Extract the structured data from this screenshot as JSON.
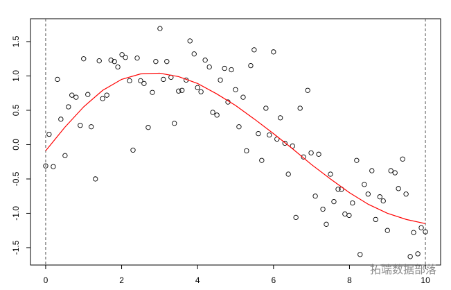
{
  "chart_data": {
    "type": "scatter",
    "x": [
      0,
      0.09,
      0.2,
      0.31,
      0.4,
      0.51,
      0.6,
      0.69,
      0.8,
      0.91,
      1.0,
      1.11,
      1.2,
      1.31,
      1.41,
      1.5,
      1.61,
      1.72,
      1.81,
      1.9,
      2.01,
      2.1,
      2.21,
      2.3,
      2.41,
      2.5,
      2.59,
      2.7,
      2.81,
      2.9,
      3.01,
      3.1,
      3.19,
      3.3,
      3.39,
      3.5,
      3.59,
      3.7,
      3.8,
      3.91,
      4.0,
      4.09,
      4.2,
      4.31,
      4.4,
      4.51,
      4.6,
      4.71,
      4.8,
      4.89,
      5.0,
      5.09,
      5.2,
      5.29,
      5.4,
      5.49,
      5.6,
      5.69,
      5.8,
      5.89,
      6.0,
      6.09,
      6.18,
      6.3,
      6.39,
      6.5,
      6.59,
      6.7,
      6.79,
      6.9,
      6.99,
      7.1,
      7.19,
      7.3,
      7.39,
      7.5,
      7.59,
      7.7,
      7.79,
      7.88,
      7.99,
      8.08,
      8.19,
      8.28,
      8.39,
      8.49,
      8.59,
      8.69,
      8.8,
      8.89,
      9.0,
      9.09,
      9.2,
      9.29,
      9.4,
      9.49,
      9.6,
      9.69,
      9.8,
      9.89,
      10.0
    ],
    "values": [
      -0.31,
      0.15,
      -0.32,
      0.95,
      0.37,
      -0.16,
      0.55,
      0.72,
      0.69,
      0.28,
      1.25,
      0.73,
      0.26,
      -0.5,
      1.22,
      0.67,
      0.72,
      1.23,
      1.21,
      1.13,
      1.31,
      1.27,
      0.93,
      -0.08,
      1.26,
      0.93,
      0.89,
      0.25,
      0.76,
      1.21,
      1.69,
      0.95,
      1.21,
      0.98,
      0.31,
      0.78,
      0.79,
      0.94,
      1.51,
      1.32,
      0.83,
      0.77,
      1.23,
      1.13,
      0.47,
      0.43,
      0.94,
      1.11,
      0.62,
      1.09,
      0.8,
      0.26,
      0.69,
      -0.09,
      1.15,
      1.38,
      0.16,
      -0.23,
      0.53,
      0.14,
      1.35,
      0.08,
      0.39,
      0.02,
      -0.43,
      -0.02,
      -1.06,
      0.53,
      -0.18,
      0.79,
      -0.12,
      -0.75,
      -0.14,
      -0.94,
      -1.16,
      -0.43,
      -0.83,
      -0.65,
      -0.65,
      -1.01,
      -1.03,
      -0.85,
      -0.23,
      -1.6,
      -0.58,
      -0.72,
      -0.38,
      -1.09,
      -0.76,
      -0.82,
      -1.25,
      -0.38,
      -0.41,
      -0.64,
      -0.21,
      -0.72,
      -1.63,
      -1.28,
      -1.59,
      -1.21,
      -1.27
    ],
    "fit": {
      "color": "#ff0000",
      "x": [
        0,
        0.5,
        1,
        1.5,
        2,
        2.5,
        3,
        3.5,
        4,
        4.5,
        5,
        5.5,
        6,
        6.5,
        7,
        7.5,
        8,
        8.5,
        9,
        9.5,
        10
      ],
      "values": [
        -0.09,
        0.25,
        0.55,
        0.79,
        0.95,
        1.03,
        1.04,
        0.99,
        0.89,
        0.74,
        0.57,
        0.37,
        0.16,
        -0.06,
        -0.29,
        -0.5,
        -0.7,
        -0.87,
        -1.0,
        -1.09,
        -1.15
      ]
    },
    "vlines": [
      0,
      10
    ],
    "xlim": [
      -0.4,
      10.4
    ],
    "ylim": [
      -1.753,
      1.833
    ],
    "xticks": [
      0,
      2,
      4,
      6,
      8,
      10
    ],
    "yticks": [
      -1.5,
      {
        "value": -1.0,
        "label": "-1.0"
      },
      -0.5,
      {
        "value": 0.0,
        "label": "0.0"
      },
      0.5,
      {
        "value": 1.0,
        "label": "1.0"
      },
      1.5
    ],
    "watermark": "拓端数据部落"
  }
}
